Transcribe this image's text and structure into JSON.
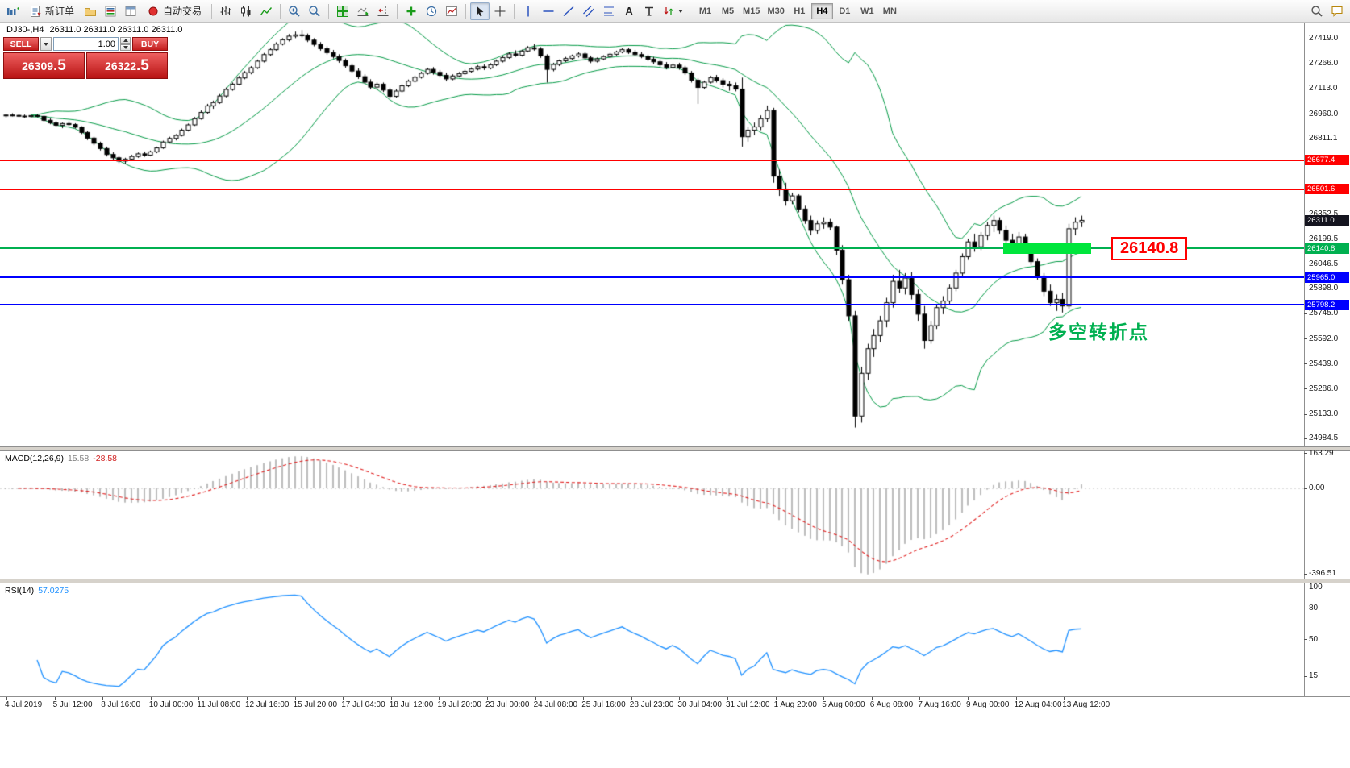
{
  "toolbar": {
    "new_order_label": "新订单",
    "autotrading_label": "自动交易",
    "text_tool_label": "A",
    "timeframes": [
      "M1",
      "M5",
      "M15",
      "M30",
      "H1",
      "H4",
      "D1",
      "W1",
      "MN"
    ],
    "active_timeframe": "H4"
  },
  "one_click": {
    "sell_label": "SELL",
    "buy_label": "BUY",
    "volume": "1.00",
    "sell_price_main": "26309",
    "sell_price_pips": ".5",
    "buy_price_main": "26322",
    "buy_price_pips": ".5"
  },
  "chart_caption": {
    "symbol_period": "DJ30-,H4",
    "ohlc": "26311.0 26311.0 26311.0 26311.0"
  },
  "chart_data": {
    "type": "candlestick",
    "symbol": "DJ30-",
    "timeframe": "H4",
    "price_axis": {
      "min": 24935,
      "max": 27515,
      "ticks": [
        {
          "label": "27419.0",
          "value": 27419.0
        },
        {
          "label": "27266.0",
          "value": 27266.0
        },
        {
          "label": "27113.0",
          "value": 27113.0
        },
        {
          "label": "26960.0",
          "value": 26960.0
        },
        {
          "label": "26811.1",
          "value": 26811.1
        },
        {
          "label": "26352.5",
          "value": 26352.5
        },
        {
          "label": "26199.5",
          "value": 26199.5
        },
        {
          "label": "26046.5",
          "value": 26046.5
        },
        {
          "label": "25898.0",
          "value": 25898.0
        },
        {
          "label": "25745.0",
          "value": 25745.0
        },
        {
          "label": "25592.0",
          "value": 25592.0
        },
        {
          "label": "25439.0",
          "value": 25439.0
        },
        {
          "label": "25286.0",
          "value": 25286.0
        },
        {
          "label": "25133.0",
          "value": 25133.0
        },
        {
          "label": "24984.5",
          "value": 24984.5
        }
      ]
    },
    "time_labels": [
      "4 Jul 2019",
      "5 Jul 12:00",
      "8 Jul 16:00",
      "10 Jul 00:00",
      "11 Jul 08:00",
      "12 Jul 16:00",
      "15 Jul 20:00",
      "17 Jul 04:00",
      "18 Jul 12:00",
      "19 Jul 20:00",
      "23 Jul 00:00",
      "24 Jul 08:00",
      "25 Jul 16:00",
      "28 Jul 23:00",
      "30 Jul 04:00",
      "31 Jul 12:00",
      "1 Aug 20:00",
      "5 Aug 00:00",
      "6 Aug 08:00",
      "7 Aug 16:00",
      "9 Aug 00:00",
      "12 Aug 04:00",
      "13 Aug 12:00"
    ],
    "overlays": {
      "bollinger": {
        "period": 20,
        "deviation": 2,
        "color": "#009944"
      },
      "horizontal_lines": [
        {
          "name": "resistance-line-1",
          "price": 26677.4,
          "label": "26677.4",
          "color": "#ff0000",
          "thickness": 2
        },
        {
          "name": "resistance-line-2",
          "price": 26501.6,
          "label": "26501.6",
          "color": "#ff0000",
          "thickness": 2
        },
        {
          "name": "pivot-line",
          "price": 26140.8,
          "label": "26140.8",
          "color": "#00b050",
          "thickness": 2
        },
        {
          "name": "support-line-1",
          "price": 25965.0,
          "label": "25965.0",
          "color": "#0000ff",
          "thickness": 2
        },
        {
          "name": "support-line-2",
          "price": 25798.2,
          "label": "25798.2",
          "color": "#0000ff",
          "thickness": 2
        }
      ],
      "current_price": {
        "price": 26311.0,
        "label": "26311.0",
        "color": "#14141f"
      },
      "rectangle": {
        "price": 26140.8,
        "from_index": 159,
        "to_index": 173,
        "color": "#00e63c"
      },
      "price_callout": {
        "text": "26140.8",
        "color": "#ff0000"
      },
      "annotation": {
        "text": "多空转折点",
        "color": "#00b050"
      }
    },
    "macd": {
      "label": "MACD(12,26,9)",
      "main_value": "15.58",
      "signal_value": "-28.58",
      "fast": 12,
      "slow": 26,
      "signal": 9,
      "range": {
        "min": -420,
        "max": 172
      },
      "ticks": [
        {
          "label": "163.29",
          "value": 163.29
        },
        {
          "label": "0.00",
          "value": 0
        },
        {
          "label": "-396.51",
          "value": -396.51
        }
      ],
      "histogram_color": "#a8a8a8",
      "signal_color": "#e02020"
    },
    "rsi": {
      "label": "RSI(14)",
      "value": "57.0275",
      "period": 14,
      "color": "#1e90ff",
      "ticks": [
        {
          "label": "100",
          "value": 100
        },
        {
          "label": "80",
          "value": 80
        },
        {
          "label": "50",
          "value": 50
        },
        {
          "label": "15",
          "value": 15
        }
      ]
    },
    "candles": [
      [
        26948,
        26960,
        26938,
        26952
      ],
      [
        26952,
        26963,
        26944,
        26950
      ],
      [
        26950,
        26958,
        26940,
        26946
      ],
      [
        26946,
        26955,
        26935,
        26943
      ],
      [
        26943,
        26952,
        26934,
        26949
      ],
      [
        26949,
        26957,
        26939,
        26944
      ],
      [
        26944,
        26950,
        26912,
        26920
      ],
      [
        26920,
        26932,
        26896,
        26904
      ],
      [
        26904,
        26916,
        26880,
        26890
      ],
      [
        26890,
        26906,
        26872,
        26900
      ],
      [
        26900,
        26914,
        26886,
        26894
      ],
      [
        26894,
        26902,
        26870,
        26878
      ],
      [
        26878,
        26884,
        26836,
        26846
      ],
      [
        26846,
        26856,
        26800,
        26812
      ],
      [
        26812,
        26820,
        26768,
        26780
      ],
      [
        26780,
        26790,
        26736,
        26748
      ],
      [
        26748,
        26760,
        26700,
        26712
      ],
      [
        26712,
        26726,
        26676,
        26692
      ],
      [
        26692,
        26704,
        26660,
        26672
      ],
      [
        26672,
        26692,
        26656,
        26684
      ],
      [
        26684,
        26710,
        26676,
        26700
      ],
      [
        26700,
        26724,
        26692,
        26716
      ],
      [
        26716,
        26730,
        26698,
        26708
      ],
      [
        26708,
        26736,
        26702,
        26728
      ],
      [
        26728,
        26760,
        26720,
        26752
      ],
      [
        26752,
        26796,
        26746,
        26788
      ],
      [
        26788,
        26820,
        26780,
        26810
      ],
      [
        26810,
        26836,
        26798,
        26828
      ],
      [
        26828,
        26870,
        26822,
        26860
      ],
      [
        26860,
        26900,
        26852,
        26892
      ],
      [
        26892,
        26940,
        26886,
        26930
      ],
      [
        26930,
        26980,
        26924,
        26968
      ],
      [
        26968,
        27020,
        26960,
        27008
      ],
      [
        27008,
        27040,
        26990,
        27028
      ],
      [
        27028,
        27080,
        27020,
        27068
      ],
      [
        27068,
        27120,
        27060,
        27108
      ],
      [
        27108,
        27150,
        27100,
        27140
      ],
      [
        27140,
        27190,
        27134,
        27178
      ],
      [
        27178,
        27220,
        27170,
        27210
      ],
      [
        27210,
        27250,
        27200,
        27240
      ],
      [
        27240,
        27290,
        27232,
        27280
      ],
      [
        27280,
        27330,
        27272,
        27320
      ],
      [
        27320,
        27360,
        27310,
        27350
      ],
      [
        27350,
        27395,
        27344,
        27384
      ],
      [
        27384,
        27420,
        27376,
        27410
      ],
      [
        27410,
        27445,
        27400,
        27432
      ],
      [
        27432,
        27460,
        27420,
        27440
      ],
      [
        27440,
        27470,
        27424,
        27436
      ],
      [
        27436,
        27448,
        27396,
        27408
      ],
      [
        27408,
        27420,
        27370,
        27382
      ],
      [
        27382,
        27396,
        27344,
        27356
      ],
      [
        27356,
        27370,
        27320,
        27332
      ],
      [
        27332,
        27348,
        27296,
        27308
      ],
      [
        27308,
        27322,
        27270,
        27284
      ],
      [
        27284,
        27296,
        27240,
        27252
      ],
      [
        27252,
        27266,
        27208,
        27220
      ],
      [
        27220,
        27236,
        27172,
        27186
      ],
      [
        27186,
        27200,
        27140,
        27152
      ],
      [
        27152,
        27170,
        27108,
        27122
      ],
      [
        27122,
        27150,
        27104,
        27140
      ],
      [
        27140,
        27150,
        27092,
        27104
      ],
      [
        27104,
        27118,
        27052,
        27066
      ],
      [
        27066,
        27110,
        27058,
        27098
      ],
      [
        27098,
        27140,
        27090,
        27130
      ],
      [
        27130,
        27168,
        27122,
        27158
      ],
      [
        27158,
        27192,
        27150,
        27182
      ],
      [
        27182,
        27216,
        27174,
        27206
      ],
      [
        27206,
        27240,
        27198,
        27230
      ],
      [
        27230,
        27244,
        27198,
        27212
      ],
      [
        27212,
        27226,
        27180,
        27194
      ],
      [
        27194,
        27210,
        27158,
        27172
      ],
      [
        27172,
        27200,
        27164,
        27190
      ],
      [
        27190,
        27214,
        27182,
        27204
      ],
      [
        27204,
        27228,
        27196,
        27218
      ],
      [
        27218,
        27242,
        27210,
        27232
      ],
      [
        27232,
        27256,
        27224,
        27246
      ],
      [
        27246,
        27260,
        27226,
        27238
      ],
      [
        27238,
        27268,
        27230,
        27258
      ],
      [
        27258,
        27290,
        27250,
        27280
      ],
      [
        27280,
        27312,
        27272,
        27302
      ],
      [
        27302,
        27334,
        27294,
        27324
      ],
      [
        27324,
        27346,
        27306,
        27316
      ],
      [
        27316,
        27350,
        27308,
        27342
      ],
      [
        27342,
        27372,
        27334,
        27362
      ],
      [
        27362,
        27384,
        27344,
        27354
      ],
      [
        27354,
        27366,
        27300,
        27312
      ],
      [
        27312,
        27322,
        27150,
        27230
      ],
      [
        27230,
        27270,
        27218,
        27260
      ],
      [
        27260,
        27290,
        27250,
        27282
      ],
      [
        27282,
        27306,
        27274,
        27296
      ],
      [
        27296,
        27320,
        27288,
        27312
      ],
      [
        27312,
        27334,
        27302,
        27324
      ],
      [
        27324,
        27338,
        27290,
        27300
      ],
      [
        27300,
        27314,
        27268,
        27280
      ],
      [
        27280,
        27302,
        27272,
        27294
      ],
      [
        27294,
        27316,
        27286,
        27308
      ],
      [
        27308,
        27330,
        27300,
        27322
      ],
      [
        27322,
        27344,
        27314,
        27336
      ],
      [
        27336,
        27358,
        27328,
        27350
      ],
      [
        27350,
        27362,
        27324,
        27334
      ],
      [
        27334,
        27348,
        27310,
        27320
      ],
      [
        27320,
        27336,
        27298,
        27308
      ],
      [
        27308,
        27320,
        27280,
        27292
      ],
      [
        27292,
        27306,
        27262,
        27276
      ],
      [
        27276,
        27290,
        27246,
        27258
      ],
      [
        27258,
        27274,
        27230,
        27242
      ],
      [
        27242,
        27266,
        27234,
        27256
      ],
      [
        27256,
        27270,
        27228,
        27240
      ],
      [
        27240,
        27252,
        27196,
        27208
      ],
      [
        27208,
        27220,
        27150,
        27164
      ],
      [
        27164,
        27176,
        27020,
        27120
      ],
      [
        27120,
        27162,
        27110,
        27152
      ],
      [
        27152,
        27190,
        27144,
        27180
      ],
      [
        27180,
        27196,
        27150,
        27162
      ],
      [
        27162,
        27176,
        27120,
        27140
      ],
      [
        27140,
        27158,
        27100,
        27130
      ],
      [
        27130,
        27150,
        27096,
        27110
      ],
      [
        27110,
        27180,
        26760,
        26820
      ],
      [
        26820,
        26880,
        26790,
        26860
      ],
      [
        26860,
        26906,
        26830,
        26880
      ],
      [
        26880,
        26950,
        26860,
        26930
      ],
      [
        26930,
        27010,
        26910,
        26980
      ],
      [
        26980,
        26996,
        26540,
        26580
      ],
      [
        26580,
        26620,
        26460,
        26500
      ],
      [
        26500,
        26540,
        26400,
        26430
      ],
      [
        26430,
        26480,
        26410,
        26460
      ],
      [
        26460,
        26470,
        26360,
        26380
      ],
      [
        26380,
        26400,
        26290,
        26310
      ],
      [
        26310,
        26340,
        26220,
        26250
      ],
      [
        26250,
        26310,
        26230,
        26290
      ],
      [
        26290,
        26330,
        26260,
        26300
      ],
      [
        26300,
        26320,
        26250,
        26270
      ],
      [
        26270,
        26280,
        26100,
        26130
      ],
      [
        26130,
        26160,
        25920,
        25950
      ],
      [
        25950,
        25980,
        25700,
        25730
      ],
      [
        25730,
        25760,
        25050,
        25120
      ],
      [
        25120,
        25420,
        25080,
        25380
      ],
      [
        25380,
        25560,
        25340,
        25530
      ],
      [
        25530,
        25650,
        25480,
        25610
      ],
      [
        25610,
        25730,
        25570,
        25700
      ],
      [
        25700,
        25840,
        25660,
        25810
      ],
      [
        25810,
        25980,
        25780,
        25940
      ],
      [
        25940,
        26010,
        25870,
        25900
      ],
      [
        25900,
        25990,
        25860,
        25960
      ],
      [
        25960,
        25996,
        25830,
        25860
      ],
      [
        25860,
        25890,
        25700,
        25740
      ],
      [
        25740,
        25790,
        25530,
        25580
      ],
      [
        25580,
        25700,
        25560,
        25670
      ],
      [
        25670,
        25800,
        25650,
        25780
      ],
      [
        25780,
        25850,
        25740,
        25820
      ],
      [
        25820,
        25920,
        25800,
        25900
      ],
      [
        25900,
        26010,
        25880,
        25990
      ],
      [
        25990,
        26110,
        25970,
        26090
      ],
      [
        26090,
        26200,
        26070,
        26180
      ],
      [
        26180,
        26230,
        26120,
        26150
      ],
      [
        26150,
        26240,
        26130,
        26220
      ],
      [
        26220,
        26300,
        26190,
        26280
      ],
      [
        26280,
        26340,
        26240,
        26310
      ],
      [
        26310,
        26330,
        26230,
        26250
      ],
      [
        26250,
        26280,
        26160,
        26190
      ],
      [
        26190,
        26230,
        26120,
        26150
      ],
      [
        26150,
        26240,
        26130,
        26210
      ],
      [
        26210,
        26230,
        26120,
        26140
      ],
      [
        26140,
        26160,
        26040,
        26060
      ],
      [
        26060,
        26080,
        25950,
        25970
      ],
      [
        25970,
        25990,
        25850,
        25880
      ],
      [
        25880,
        25920,
        25790,
        25810
      ],
      [
        25810,
        25860,
        25760,
        25830
      ],
      [
        25830,
        25870,
        25750,
        25790
      ],
      [
        25790,
        26290,
        25770,
        26260
      ],
      [
        26260,
        26330,
        26220,
        26300
      ],
      [
        26300,
        26340,
        26270,
        26311
      ]
    ]
  }
}
